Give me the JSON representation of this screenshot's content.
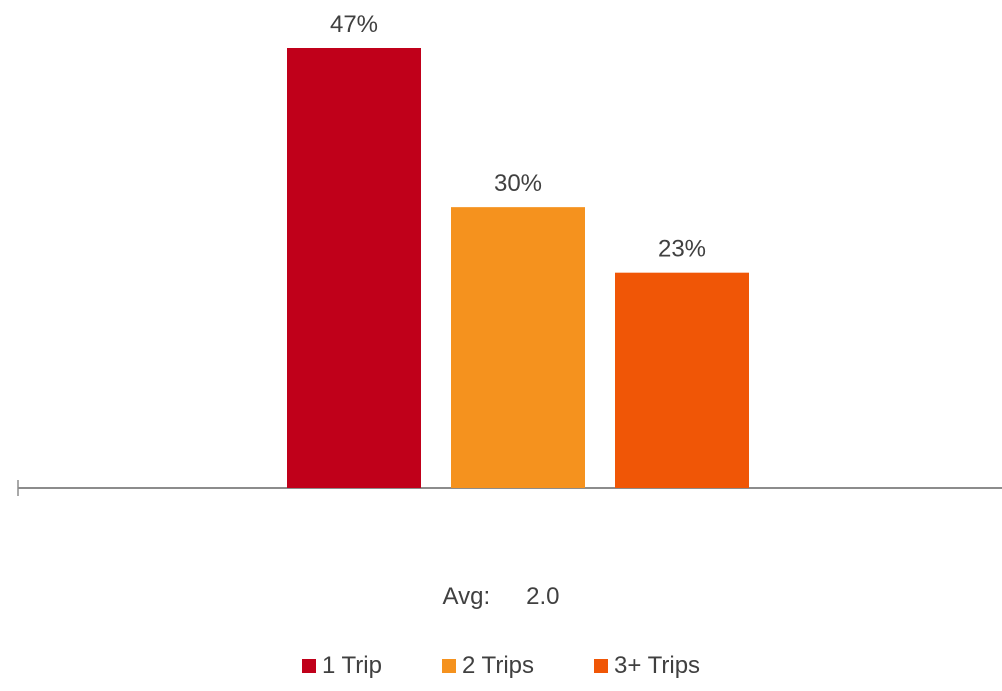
{
  "chart_data": {
    "type": "bar",
    "categories": [
      "1 Trip",
      "2 Trips",
      "3+ Trips"
    ],
    "values": [
      47,
      30,
      23
    ],
    "data_labels": [
      "47%",
      "30%",
      "23%"
    ],
    "colors": [
      "#c0001a",
      "#f5921e",
      "#f05606"
    ],
    "ylim": [
      0,
      50
    ],
    "grid": false,
    "legend_placement": "bottom",
    "title": "",
    "xlabel": "",
    "ylabel": ""
  },
  "summary": {
    "avg_label": "Avg:",
    "avg_value": "2.0"
  },
  "legend": {
    "items": [
      {
        "label": "1 Trip",
        "color": "#c0001a"
      },
      {
        "label": "2 Trips",
        "color": "#f5921e"
      },
      {
        "label": "3+ Trips",
        "color": "#f05606"
      }
    ]
  }
}
